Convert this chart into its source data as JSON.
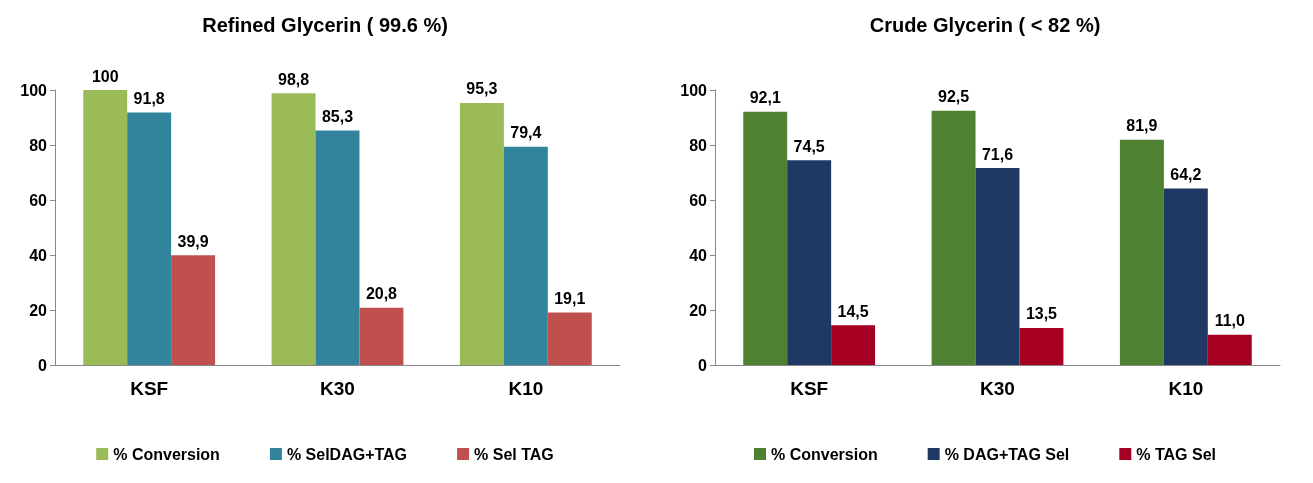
{
  "chart_data": [
    {
      "type": "bar",
      "title": "Refined Glycerin ( 99.6 %)",
      "categories": [
        "KSF",
        "K30",
        "K10"
      ],
      "ylim": [
        0,
        100
      ],
      "yticks": [
        0,
        20,
        40,
        60,
        80,
        100
      ],
      "legend": "bottom",
      "series": [
        {
          "name": "% Conversion",
          "color": "#9bbb59",
          "values": [
            100,
            98.8,
            95.3
          ],
          "value_labels": [
            "100",
            "98,8",
            "95,3"
          ]
        },
        {
          "name": "% SelDAG+TAG",
          "color": "#31849b",
          "values": [
            91.8,
            85.3,
            79.4
          ],
          "value_labels": [
            "91,8",
            "85,3",
            "79,4"
          ]
        },
        {
          "name": "% Sel TAG",
          "color": "#c0504d",
          "values": [
            39.9,
            20.8,
            19.1
          ],
          "value_labels": [
            "39,9",
            "20,8",
            "19,1"
          ]
        }
      ]
    },
    {
      "type": "bar",
      "title": "Crude Glycerin ( < 82 %)",
      "categories": [
        "KSF",
        "K30",
        "K10"
      ],
      "ylim": [
        0,
        100
      ],
      "yticks": [
        0,
        20,
        40,
        60,
        80,
        100
      ],
      "legend": "bottom",
      "series": [
        {
          "name": "% Conversion",
          "color": "#4f8132",
          "values": [
            92.1,
            92.5,
            81.9
          ],
          "value_labels": [
            "92,1",
            "92,5",
            "81,9"
          ]
        },
        {
          "name": "% DAG+TAG Sel",
          "color": "#1f3864",
          "values": [
            74.5,
            71.6,
            64.2
          ],
          "value_labels": [
            "74,5",
            "71,6",
            "64,2"
          ]
        },
        {
          "name": "% TAG Sel",
          "color": "#a50021",
          "values": [
            14.5,
            13.5,
            11.0
          ],
          "value_labels": [
            "14,5",
            "13,5",
            "11,0"
          ]
        }
      ]
    }
  ]
}
